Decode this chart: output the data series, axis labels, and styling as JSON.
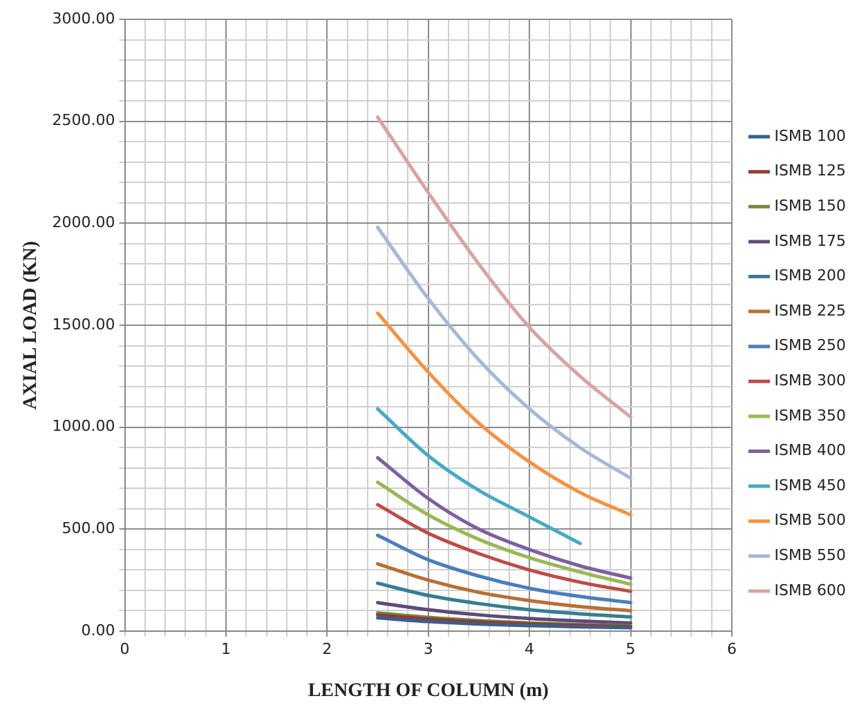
{
  "chart_data": {
    "type": "line",
    "xlabel": "LENGTH OF COLUMN (m)",
    "ylabel": "AXIAL LOAD (KN)",
    "x": [
      2.5,
      3,
      3.5,
      4,
      4.5,
      5
    ],
    "xlim": [
      0,
      6
    ],
    "ylim": [
      0,
      3000
    ],
    "xticks": [
      0,
      {
        "value": 0.2,
        "label": null
      },
      {
        "value": 0.4,
        "label": null
      },
      {
        "value": 0.6,
        "label": null
      },
      {
        "value": 0.8,
        "label": null
      },
      1,
      {
        "value": 1.2,
        "label": null
      },
      {
        "value": 1.4,
        "label": null
      },
      {
        "value": 1.6,
        "label": null
      },
      {
        "value": 1.8,
        "label": null
      },
      2,
      {
        "value": 2.2,
        "label": null
      },
      {
        "value": 2.4,
        "label": null
      },
      {
        "value": 2.6,
        "label": null
      },
      {
        "value": 2.8,
        "label": null
      },
      3,
      {
        "value": 3.2,
        "label": null
      },
      {
        "value": 3.4,
        "label": null
      },
      {
        "value": 3.6,
        "label": null
      },
      {
        "value": 3.8,
        "label": null
      },
      4,
      {
        "value": 4.2,
        "label": null
      },
      {
        "value": 4.4,
        "label": null
      },
      {
        "value": 4.6,
        "label": null
      },
      {
        "value": 4.8,
        "label": null
      },
      5,
      {
        "value": 5.2,
        "label": null
      },
      {
        "value": 5.4,
        "label": null
      },
      {
        "value": 5.6,
        "label": null
      },
      {
        "value": 5.8,
        "label": null
      },
      6
    ],
    "yticks": [
      {
        "value": 0,
        "label": "0.00"
      },
      {
        "value": 100,
        "label": null
      },
      {
        "value": 200,
        "label": null
      },
      {
        "value": 300,
        "label": null
      },
      {
        "value": 400,
        "label": null
      },
      {
        "value": 500,
        "label": "500.00"
      },
      {
        "value": 600,
        "label": null
      },
      {
        "value": 700,
        "label": null
      },
      {
        "value": 800,
        "label": null
      },
      {
        "value": 900,
        "label": null
      },
      {
        "value": 1000,
        "label": "1000.00"
      },
      {
        "value": 1100,
        "label": null
      },
      {
        "value": 1200,
        "label": null
      },
      {
        "value": 1300,
        "label": null
      },
      {
        "value": 1400,
        "label": null
      },
      {
        "value": 1500,
        "label": "1500.00"
      },
      {
        "value": 1600,
        "label": null
      },
      {
        "value": 1700,
        "label": null
      },
      {
        "value": 1800,
        "label": null
      },
      {
        "value": 1900,
        "label": null
      },
      {
        "value": 2000,
        "label": "2000.00"
      },
      {
        "value": 2100,
        "label": null
      },
      {
        "value": 2200,
        "label": null
      },
      {
        "value": 2300,
        "label": null
      },
      {
        "value": 2400,
        "label": null
      },
      {
        "value": 2500,
        "label": "2500.00"
      },
      {
        "value": 2600,
        "label": null
      },
      {
        "value": 2700,
        "label": null
      },
      {
        "value": 2800,
        "label": null
      },
      {
        "value": 2900,
        "label": null
      },
      {
        "value": 3000,
        "label": "3000.00"
      }
    ],
    "grid": true,
    "legend": "right",
    "marker": "none",
    "line_style": "solid",
    "series": [
      {
        "name": "ISMB 100",
        "color": "#3a5f8c",
        "values": [
          65,
          47,
          35,
          27,
          21,
          17
        ]
      },
      {
        "name": "ISMB 125",
        "color": "#8f3a37",
        "values": [
          80,
          60,
          45,
          35,
          28,
          22
        ]
      },
      {
        "name": "ISMB 150",
        "color": "#738b41",
        "values": [
          90,
          68,
          52,
          40,
          32,
          26
        ]
      },
      {
        "name": "ISMB 175",
        "color": "#5e4a78",
        "values": [
          140,
          105,
          80,
          62,
          50,
          40
        ]
      },
      {
        "name": "ISMB 200",
        "color": "#367e92",
        "values": [
          235,
          175,
          135,
          105,
          85,
          70
        ]
      },
      {
        "name": "ISMB 225",
        "color": "#b76f32",
        "values": [
          330,
          250,
          190,
          150,
          120,
          100
        ]
      },
      {
        "name": "ISMB 250",
        "color": "#4a7ebb",
        "values": [
          470,
          350,
          270,
          210,
          170,
          140
        ]
      },
      {
        "name": "ISMB 300",
        "color": "#be4b48",
        "values": [
          620,
          480,
          380,
          300,
          240,
          195
        ]
      },
      {
        "name": "ISMB 350",
        "color": "#98b954",
        "values": [
          730,
          570,
          450,
          360,
          290,
          230
        ]
      },
      {
        "name": "ISMB 400",
        "color": "#7d60a0",
        "values": [
          850,
          650,
          500,
          400,
          320,
          260
        ]
      },
      {
        "name": "ISMB 450",
        "color": "#46aac5",
        "x": [
          2.5,
          3,
          3.5,
          4,
          4.5
        ],
        "values": [
          1090,
          860,
          690,
          560,
          430
        ]
      },
      {
        "name": "ISMB 500",
        "color": "#f69240",
        "values": [
          1560,
          1270,
          1020,
          830,
          680,
          570
        ]
      },
      {
        "name": "ISMB 550",
        "color": "#a5b8d8",
        "values": [
          1980,
          1630,
          1330,
          1090,
          900,
          750
        ]
      },
      {
        "name": "ISMB 600",
        "color": "#d9a3a1",
        "values": [
          2520,
          2150,
          1800,
          1490,
          1250,
          1050
        ]
      }
    ]
  }
}
